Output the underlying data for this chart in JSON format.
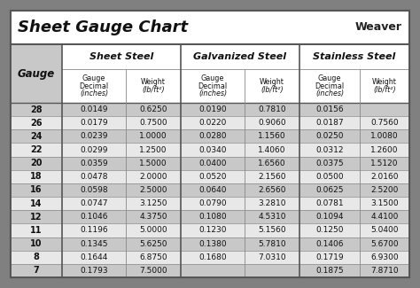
{
  "title": "Sheet Gauge Chart",
  "bg_outer": "#808080",
  "bg_white": "#ffffff",
  "bg_light_gray": "#e8e8e8",
  "bg_dark_gray": "#c8c8c8",
  "bg_inner": "#f2f2f2",
  "gauges": [
    28,
    26,
    24,
    22,
    20,
    18,
    16,
    14,
    12,
    11,
    10,
    8,
    7
  ],
  "sheet_steel_decimal": [
    "0.0149",
    "0.0179",
    "0.0239",
    "0.0299",
    "0.0359",
    "0.0478",
    "0.0598",
    "0.0747",
    "0.1046",
    "0.1196",
    "0.1345",
    "0.1644",
    "0.1793"
  ],
  "sheet_steel_weight": [
    "0.6250",
    "0.7500",
    "1.0000",
    "1.2500",
    "1.5000",
    "2.0000",
    "2.5000",
    "3.1250",
    "4.3750",
    "5.0000",
    "5.6250",
    "6.8750",
    "7.5000"
  ],
  "galvanized_decimal": [
    "0.0190",
    "0.0220",
    "0.0280",
    "0.0340",
    "0.0400",
    "0.0520",
    "0.0640",
    "0.0790",
    "0.1080",
    "0.1230",
    "0.1380",
    "0.1680",
    ""
  ],
  "galvanized_weight": [
    "0.7810",
    "0.9060",
    "1.1560",
    "1.4060",
    "1.6560",
    "2.1560",
    "2.6560",
    "3.2810",
    "4.5310",
    "5.1560",
    "5.7810",
    "7.0310",
    ""
  ],
  "stainless_decimal": [
    "0.0156",
    "0.0187",
    "0.0250",
    "0.0312",
    "0.0375",
    "0.0500",
    "0.0625",
    "0.0781",
    "0.1094",
    "0.1250",
    "0.1406",
    "0.1719",
    "0.1875"
  ],
  "stainless_weight": [
    "",
    "0.7560",
    "1.0080",
    "1.2600",
    "1.5120",
    "2.0160",
    "2.5200",
    "3.1500",
    "4.4100",
    "5.0400",
    "5.6700",
    "6.9300",
    "7.8710"
  ]
}
